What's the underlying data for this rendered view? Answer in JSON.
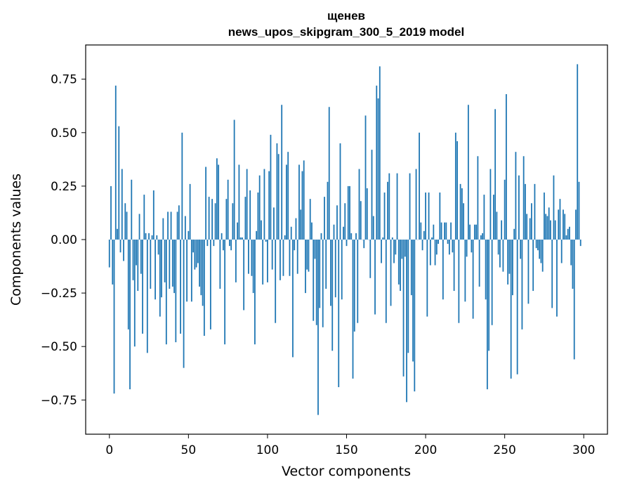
{
  "chart_data": {
    "type": "bar",
    "title": "щенев",
    "subtitle": "news_upos_skipgram_300_5_2019 model",
    "xlabel": "Vector components",
    "ylabel": "Components values",
    "xlim": [
      -15,
      315
    ],
    "ylim": [
      -0.91,
      0.91
    ],
    "x_ticks": [
      0,
      50,
      100,
      150,
      200,
      250,
      300
    ],
    "x_tick_labels": [
      "0",
      "50",
      "100",
      "150",
      "200",
      "250",
      "300"
    ],
    "y_ticks": [
      0.75,
      0.5,
      0.25,
      0.0,
      -0.25,
      -0.5,
      -0.75
    ],
    "y_tick_labels": [
      "0.75",
      "0.50",
      "0.25",
      "0.00",
      "−0.25",
      "−0.50",
      "−0.75"
    ],
    "grid": false,
    "bar_color": "#1f77b4",
    "values": [
      -0.13,
      0.25,
      -0.21,
      -0.72,
      0.72,
      0.05,
      0.53,
      -0.06,
      0.33,
      -0.1,
      0.17,
      0.13,
      -0.42,
      -0.7,
      0.28,
      -0.19,
      -0.5,
      -0.12,
      -0.24,
      0.12,
      -0.16,
      -0.44,
      0.21,
      0.03,
      -0.53,
      0.03,
      -0.23,
      0.02,
      0.23,
      -0.28,
      0.02,
      -0.07,
      -0.36,
      -0.27,
      0.1,
      -0.2,
      -0.49,
      0.13,
      -0.23,
      0.13,
      -0.22,
      -0.25,
      -0.48,
      0.13,
      0.16,
      -0.44,
      0.5,
      -0.6,
      0.11,
      -0.29,
      0.04,
      0.26,
      -0.29,
      -0.06,
      -0.14,
      -0.13,
      -0.11,
      -0.22,
      -0.26,
      -0.31,
      -0.45,
      0.34,
      -0.03,
      0.2,
      -0.42,
      0.19,
      -0.03,
      0.17,
      0.38,
      0.35,
      -0.23,
      0.03,
      -0.05,
      -0.49,
      0.19,
      0.28,
      -0.03,
      -0.05,
      0.17,
      0.56,
      -0.2,
      0.08,
      0.35,
      0.01,
      0.01,
      -0.33,
      0.2,
      0.33,
      -0.16,
      0.23,
      -0.17,
      -0.25,
      -0.49,
      0.04,
      0.22,
      0.3,
      0.09,
      -0.21,
      0.33,
      -0.01,
      -0.2,
      0.32,
      0.49,
      -0.14,
      0.15,
      -0.39,
      0.45,
      0.4,
      -0.19,
      0.63,
      -0.17,
      0.02,
      0.35,
      0.41,
      -0.17,
      0.06,
      -0.55,
      -0.05,
      0.1,
      -0.16,
      0.35,
      0.14,
      0.32,
      0.37,
      -0.25,
      -0.14,
      -0.15,
      0.19,
      0.08,
      -0.38,
      -0.09,
      -0.4,
      -0.82,
      -0.32,
      0.03,
      -0.41,
      0.2,
      -0.23,
      0.27,
      0.62,
      -0.31,
      -0.52,
      0.07,
      -0.27,
      0.16,
      -0.69,
      0.45,
      -0.28,
      0.06,
      0.17,
      -0.03,
      0.25,
      0.25,
      0.03,
      -0.65,
      -0.43,
      0.03,
      -0.39,
      0.33,
      0.18,
      0.0,
      -0.04,
      0.58,
      0.24,
      0.0,
      -0.18,
      0.42,
      0.11,
      -0.35,
      0.72,
      0.66,
      0.81,
      -0.11,
      0.01,
      0.22,
      -0.39,
      0.27,
      0.31,
      -0.31,
      0.01,
      -0.11,
      -0.07,
      0.31,
      -0.21,
      -0.24,
      -0.09,
      -0.64,
      -0.08,
      -0.76,
      -0.53,
      0.31,
      -0.26,
      -0.57,
      -0.71,
      0.33,
      0.0,
      0.5,
      0.08,
      -0.05,
      0.04,
      0.22,
      -0.36,
      0.22,
      -0.12,
      0.01,
      0.07,
      -0.12,
      -0.07,
      -0.02,
      0.22,
      0.08,
      -0.28,
      0.08,
      0.08,
      -0.02,
      -0.07,
      0.08,
      -0.06,
      -0.24,
      0.5,
      0.46,
      -0.39,
      0.26,
      0.24,
      0.17,
      -0.29,
      -0.08,
      0.63,
      0.07,
      -0.06,
      -0.37,
      0.07,
      0.07,
      0.39,
      -0.22,
      0.02,
      0.03,
      0.21,
      -0.28,
      -0.7,
      -0.52,
      0.33,
      -0.4,
      0.21,
      0.61,
      0.13,
      -0.07,
      -0.13,
      0.09,
      -0.15,
      0.28,
      0.68,
      -0.21,
      -0.16,
      -0.65,
      -0.26,
      0.05,
      0.41,
      -0.63,
      0.3,
      -0.09,
      -0.42,
      0.39,
      0.26,
      0.12,
      -0.3,
      0.1,
      0.17,
      -0.24,
      0.26,
      -0.04,
      -0.05,
      -0.09,
      -0.11,
      -0.15,
      0.22,
      0.12,
      0.11,
      0.15,
      0.09,
      -0.32,
      0.3,
      0.09,
      -0.36,
      0.14,
      0.19,
      -0.11,
      0.14,
      0.12,
      0.02,
      0.05,
      0.06,
      -0.12,
      -0.23,
      -0.56,
      0.14,
      0.82,
      0.27,
      -0.03
    ]
  }
}
